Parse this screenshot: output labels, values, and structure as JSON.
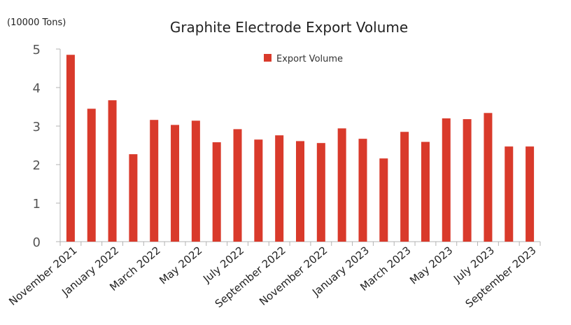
{
  "chart_data": {
    "type": "bar",
    "title": "Graphite Electrode Export Volume",
    "unit_label": "(10000 Tons)",
    "legend": "Export Volume",
    "legend_position": "top-center",
    "grid": false,
    "ylim": [
      0,
      5
    ],
    "yticks": [
      "0",
      "1",
      "2",
      "3",
      "4",
      "5"
    ],
    "bar_color": "#d93a2b",
    "axis_color": "#b3b3b3",
    "categories": [
      "November 2021",
      "December 2021",
      "January 2022",
      "February 2022",
      "March 2022",
      "April 2022",
      "May 2022",
      "June 2022",
      "July 2022",
      "August 2022",
      "September 2022",
      "October 2022",
      "November 2022",
      "December 2022",
      "January 2023",
      "February 2023",
      "March 2023",
      "April 2023",
      "May 2023",
      "June 2023",
      "July 2023",
      "August 2023",
      "September 2023"
    ],
    "xtick_labels": [
      "November 2021",
      "January 2022",
      "March 2022",
      "May 2022",
      "July 2022",
      "September 2022",
      "November 2022",
      "January 2023",
      "March 2023",
      "May 2023",
      "July 2023",
      "September 2023"
    ],
    "series": [
      {
        "name": "Export Volume",
        "values": [
          4.85,
          3.45,
          3.67,
          2.27,
          3.16,
          3.03,
          3.14,
          2.58,
          2.92,
          2.65,
          2.76,
          2.61,
          2.56,
          2.94,
          2.67,
          2.16,
          2.85,
          2.59,
          3.2,
          3.18,
          3.34,
          2.47,
          2.47
        ]
      }
    ]
  }
}
